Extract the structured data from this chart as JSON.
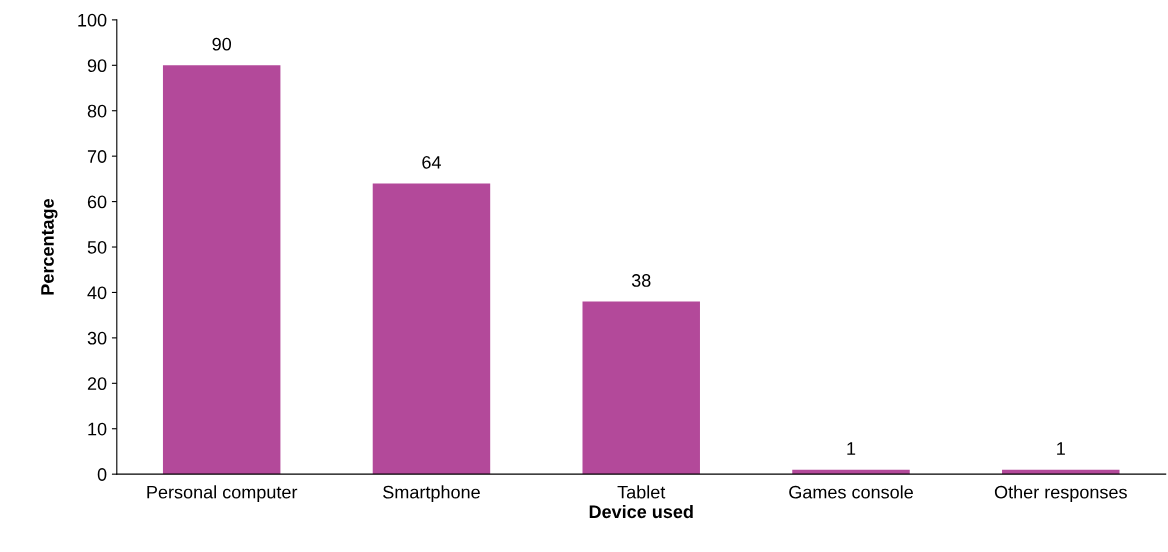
{
  "chart_data": {
    "type": "bar",
    "xlabel": "Device used",
    "ylabel": "Percentage",
    "categories": [
      "Personal computer",
      "Smartphone",
      "Tablet",
      "Games console",
      "Other responses"
    ],
    "values": [
      90,
      64,
      38,
      1,
      1
    ],
    "color": "#b3499a",
    "data_labels": true,
    "ylim": [
      0,
      100
    ],
    "yticks": [
      0,
      10,
      20,
      30,
      40,
      50,
      60,
      70,
      80,
      90,
      100
    ],
    "grid": false
  }
}
